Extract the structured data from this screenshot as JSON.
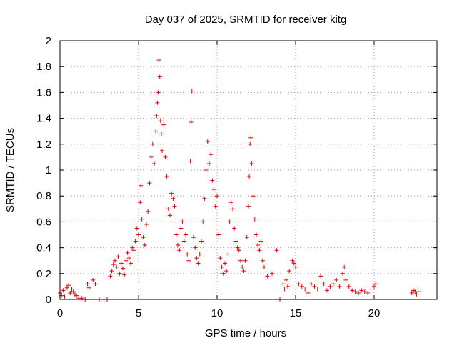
{
  "chart_data": {
    "type": "scatter",
    "title": "Day 037 of 2025, SRMTID for receiver kitg",
    "xlabel": "GPS time / hours",
    "ylabel": "SRMTID / TECUs",
    "xlim": [
      0,
      24
    ],
    "ylim": [
      0,
      2
    ],
    "x_ticks": [
      0,
      5,
      10,
      15,
      20
    ],
    "x_tick_labels": [
      "0",
      "5",
      "10",
      "15",
      "20"
    ],
    "y_ticks": [
      0,
      0.2,
      0.4,
      0.6,
      0.8,
      1,
      1.2,
      1.4,
      1.6,
      1.8,
      2
    ],
    "y_tick_labels": [
      "0",
      "0.2",
      "0.4",
      "0.6",
      "0.8",
      "1",
      "1.2",
      "1.4",
      "1.6",
      "1.8",
      "2"
    ],
    "grid": true,
    "marker": "+",
    "color": "#e00000",
    "series": [
      {
        "name": "SRMTID",
        "points": [
          [
            0.0,
            0.05
          ],
          [
            0.1,
            0.03
          ],
          [
            0.2,
            0.07
          ],
          [
            0.3,
            0.02
          ],
          [
            0.45,
            0.09
          ],
          [
            0.55,
            0.11
          ],
          [
            0.65,
            0.05
          ],
          [
            0.75,
            0.08
          ],
          [
            0.85,
            0.06
          ],
          [
            0.95,
            0.04
          ],
          [
            1.05,
            0.03
          ],
          [
            1.2,
            0.01
          ],
          [
            1.4,
            0.01
          ],
          [
            1.6,
            0.0
          ],
          [
            1.75,
            0.12
          ],
          [
            1.85,
            0.09
          ],
          [
            2.1,
            0.15
          ],
          [
            2.25,
            0.12
          ],
          [
            2.5,
            0.0
          ],
          [
            2.8,
            0.0
          ],
          [
            3.0,
            0.0
          ],
          [
            3.2,
            0.18
          ],
          [
            3.3,
            0.22
          ],
          [
            3.4,
            0.27
          ],
          [
            3.5,
            0.3
          ],
          [
            3.6,
            0.25
          ],
          [
            3.7,
            0.33
          ],
          [
            3.8,
            0.2
          ],
          [
            3.9,
            0.28
          ],
          [
            4.0,
            0.24
          ],
          [
            4.1,
            0.19
          ],
          [
            4.2,
            0.3
          ],
          [
            4.3,
            0.36
          ],
          [
            4.4,
            0.32
          ],
          [
            4.5,
            0.28
          ],
          [
            4.6,
            0.4
          ],
          [
            4.7,
            0.38
          ],
          [
            4.8,
            0.45
          ],
          [
            4.9,
            0.55
          ],
          [
            5.0,
            0.5
          ],
          [
            5.1,
            0.75
          ],
          [
            5.15,
            0.88
          ],
          [
            5.2,
            0.62
          ],
          [
            5.3,
            0.48
          ],
          [
            5.4,
            0.42
          ],
          [
            5.5,
            0.58
          ],
          [
            5.6,
            0.68
          ],
          [
            5.7,
            0.9
          ],
          [
            5.8,
            1.1
          ],
          [
            5.9,
            1.2
          ],
          [
            6.0,
            1.05
          ],
          [
            6.1,
            1.3
          ],
          [
            6.15,
            1.42
          ],
          [
            6.2,
            1.52
          ],
          [
            6.25,
            1.6
          ],
          [
            6.3,
            1.85
          ],
          [
            6.35,
            1.72
          ],
          [
            6.4,
            1.38
          ],
          [
            6.45,
            1.28
          ],
          [
            6.5,
            1.15
          ],
          [
            6.6,
            1.35
          ],
          [
            6.7,
            1.1
          ],
          [
            6.8,
            0.95
          ],
          [
            6.9,
            0.7
          ],
          [
            7.0,
            0.65
          ],
          [
            7.1,
            0.82
          ],
          [
            7.2,
            0.78
          ],
          [
            7.3,
            0.72
          ],
          [
            7.4,
            0.5
          ],
          [
            7.5,
            0.42
          ],
          [
            7.6,
            0.38
          ],
          [
            7.7,
            0.55
          ],
          [
            7.8,
            0.6
          ],
          [
            7.9,
            0.45
          ],
          [
            8.0,
            0.5
          ],
          [
            8.1,
            0.35
          ],
          [
            8.2,
            0.3
          ],
          [
            8.3,
            1.07
          ],
          [
            8.35,
            1.37
          ],
          [
            8.4,
            1.61
          ],
          [
            8.5,
            0.48
          ],
          [
            8.6,
            0.4
          ],
          [
            8.7,
            0.32
          ],
          [
            8.8,
            0.28
          ],
          [
            8.9,
            0.35
          ],
          [
            9.0,
            0.45
          ],
          [
            9.1,
            0.6
          ],
          [
            9.2,
            0.78
          ],
          [
            9.3,
            1.0
          ],
          [
            9.4,
            1.22
          ],
          [
            9.5,
            1.05
          ],
          [
            9.6,
            1.12
          ],
          [
            9.7,
            0.92
          ],
          [
            9.8,
            0.85
          ],
          [
            9.9,
            0.72
          ],
          [
            10.0,
            0.8
          ],
          [
            10.1,
            0.5
          ],
          [
            10.2,
            0.32
          ],
          [
            10.3,
            0.25
          ],
          [
            10.4,
            0.2
          ],
          [
            10.5,
            0.28
          ],
          [
            10.6,
            0.22
          ],
          [
            10.7,
            0.35
          ],
          [
            10.8,
            0.6
          ],
          [
            10.9,
            0.75
          ],
          [
            11.0,
            0.7
          ],
          [
            11.1,
            0.55
          ],
          [
            11.2,
            0.45
          ],
          [
            11.3,
            0.4
          ],
          [
            11.4,
            0.38
          ],
          [
            11.5,
            0.3
          ],
          [
            11.6,
            0.25
          ],
          [
            11.7,
            0.22
          ],
          [
            11.8,
            0.3
          ],
          [
            11.9,
            0.48
          ],
          [
            12.0,
            0.72
          ],
          [
            12.05,
            0.95
          ],
          [
            12.1,
            1.2
          ],
          [
            12.15,
            1.25
          ],
          [
            12.2,
            1.05
          ],
          [
            12.3,
            0.8
          ],
          [
            12.4,
            0.62
          ],
          [
            12.5,
            0.5
          ],
          [
            12.6,
            0.42
          ],
          [
            12.7,
            0.38
          ],
          [
            12.8,
            0.45
          ],
          [
            12.9,
            0.3
          ],
          [
            13.0,
            0.25
          ],
          [
            13.2,
            0.18
          ],
          [
            13.5,
            0.2
          ],
          [
            13.8,
            0.38
          ],
          [
            14.0,
            0.0
          ],
          [
            14.2,
            0.12
          ],
          [
            14.3,
            0.08
          ],
          [
            14.4,
            0.15
          ],
          [
            14.5,
            0.1
          ],
          [
            14.6,
            0.22
          ],
          [
            14.8,
            0.3
          ],
          [
            14.9,
            0.28
          ],
          [
            15.0,
            0.25
          ],
          [
            15.2,
            0.12
          ],
          [
            15.4,
            0.1
          ],
          [
            15.6,
            0.08
          ],
          [
            15.8,
            0.05
          ],
          [
            16.0,
            0.12
          ],
          [
            16.2,
            0.1
          ],
          [
            16.4,
            0.08
          ],
          [
            16.6,
            0.18
          ],
          [
            16.8,
            0.12
          ],
          [
            17.0,
            0.07
          ],
          [
            17.2,
            0.1
          ],
          [
            17.4,
            0.12
          ],
          [
            17.6,
            0.15
          ],
          [
            17.8,
            0.1
          ],
          [
            18.0,
            0.2
          ],
          [
            18.1,
            0.25
          ],
          [
            18.2,
            0.15
          ],
          [
            18.4,
            0.1
          ],
          [
            18.6,
            0.07
          ],
          [
            18.8,
            0.06
          ],
          [
            19.0,
            0.05
          ],
          [
            19.2,
            0.07
          ],
          [
            19.4,
            0.06
          ],
          [
            19.6,
            0.05
          ],
          [
            19.8,
            0.08
          ],
          [
            20.0,
            0.1
          ],
          [
            20.1,
            0.12
          ],
          [
            22.4,
            0.05
          ],
          [
            22.5,
            0.07
          ],
          [
            22.6,
            0.06
          ],
          [
            22.7,
            0.04
          ],
          [
            22.8,
            0.06
          ]
        ]
      }
    ]
  }
}
